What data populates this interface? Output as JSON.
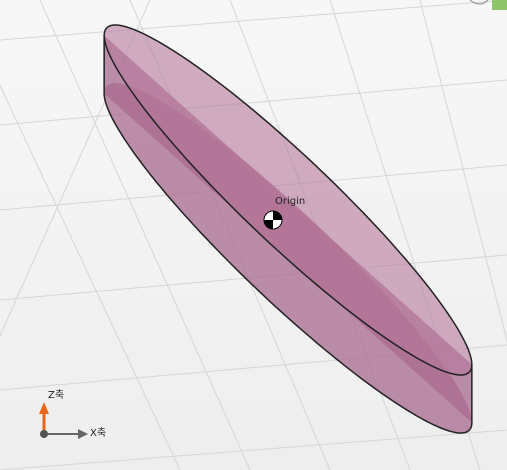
{
  "viewport": {
    "origin_label": "Origin",
    "axes": {
      "z": "Z축",
      "x": "X축"
    }
  }
}
